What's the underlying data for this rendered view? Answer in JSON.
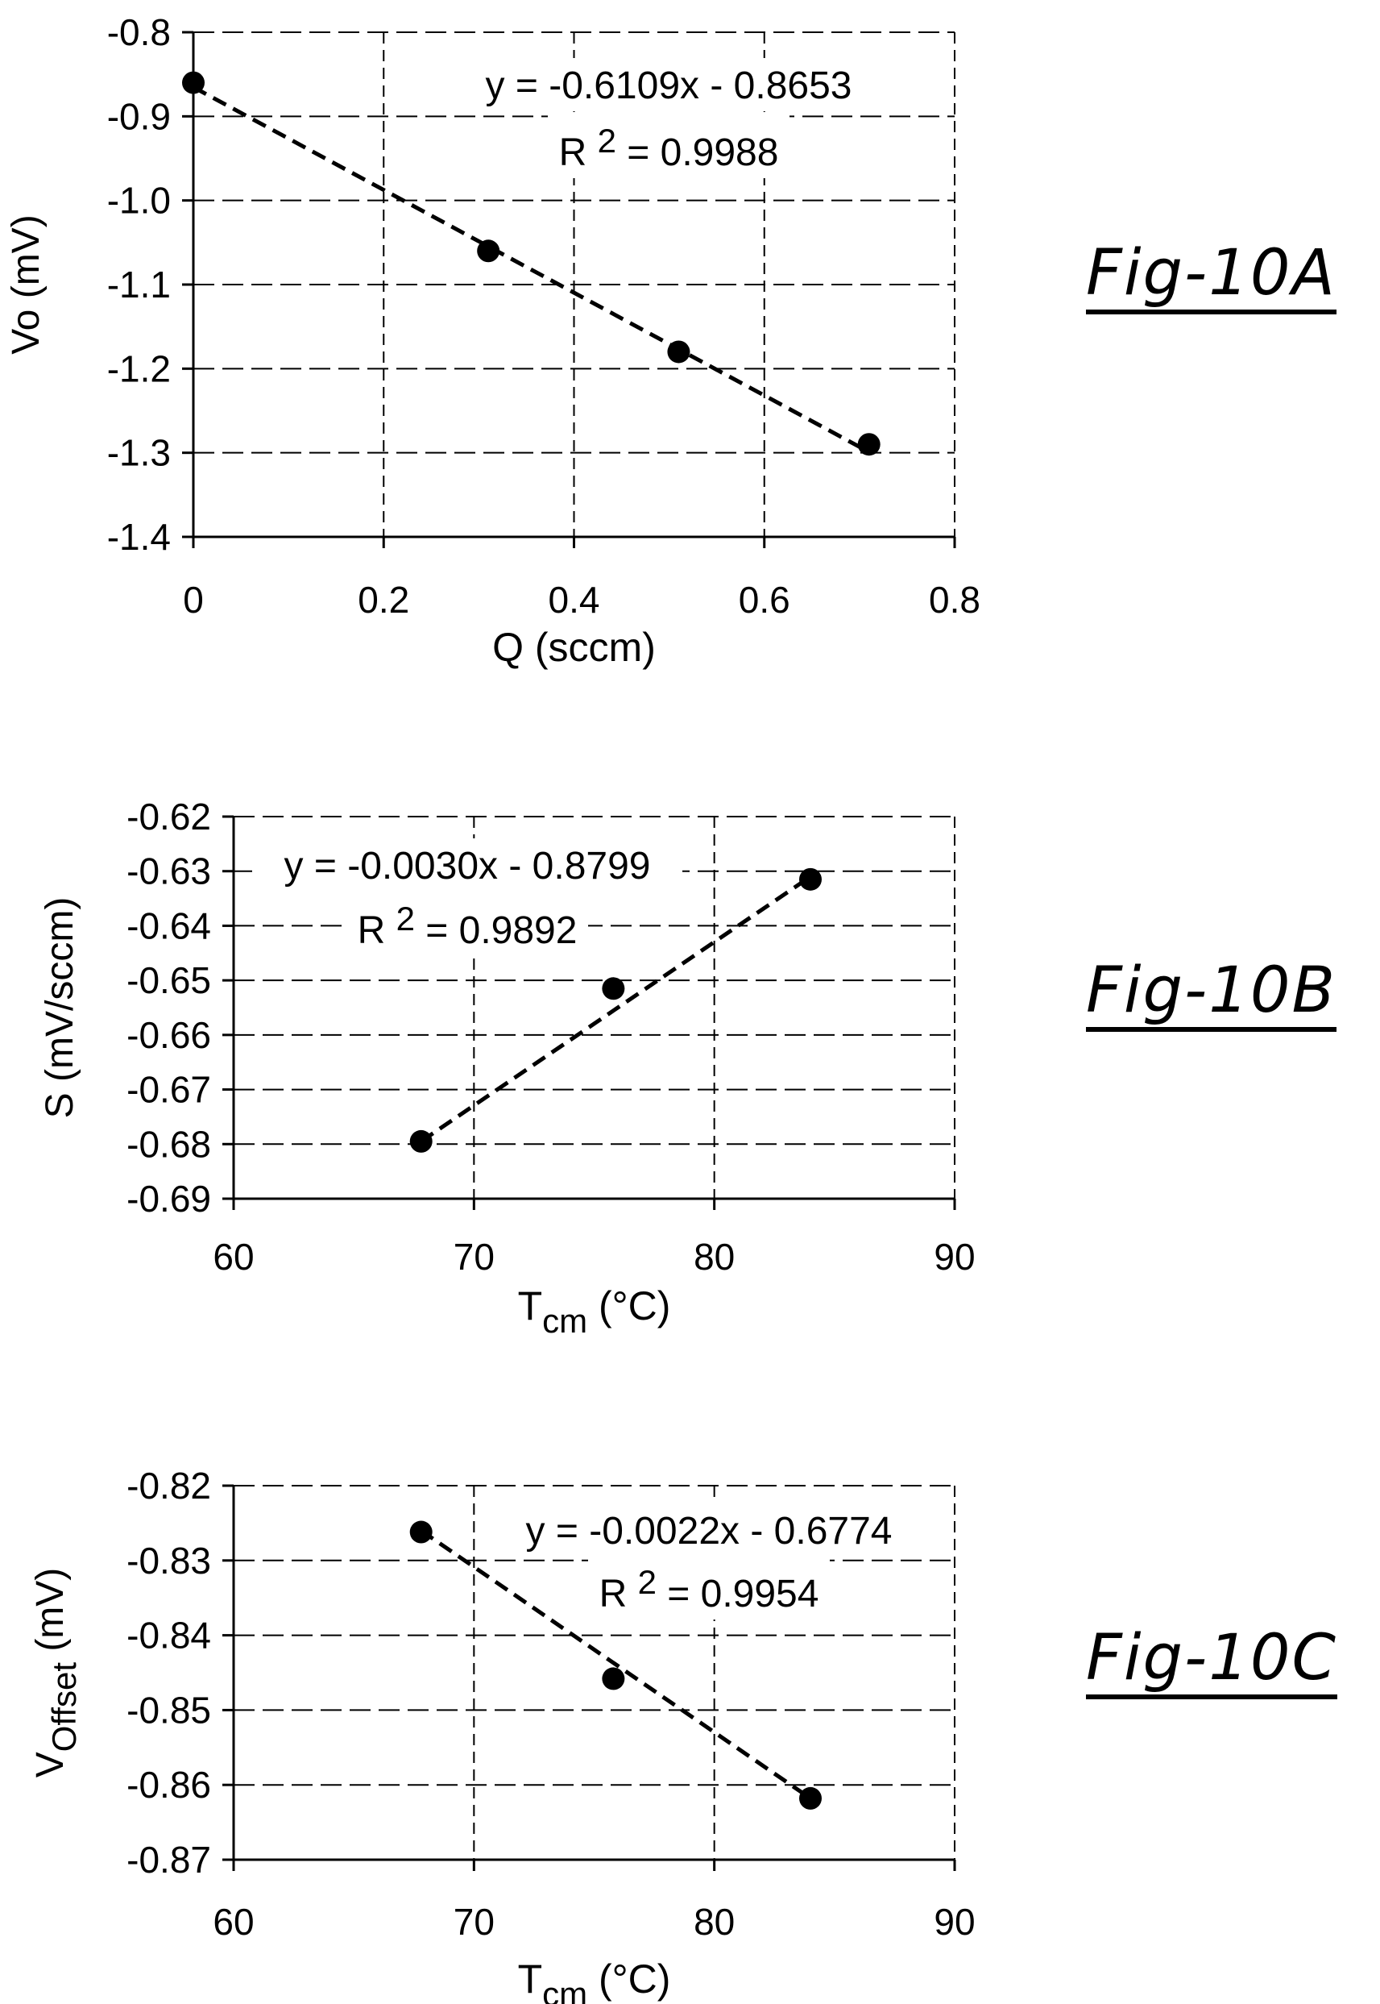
{
  "figures": [
    {
      "label": "Fig-10A"
    },
    {
      "label": "Fig-10B"
    },
    {
      "label": "Fig-10C"
    }
  ],
  "chart_data": [
    {
      "type": "scatter",
      "title": "",
      "xlabel": "Q (sccm)",
      "ylabel": "Vo (mV)",
      "xlim": [
        0,
        0.8
      ],
      "ylim": [
        -1.4,
        -0.8
      ],
      "xticks": [
        "0",
        "0.2",
        "0.4",
        "0.6",
        "0.8"
      ],
      "yticks": [
        "-0.8",
        "-0.9",
        "-1.0",
        "-1.1",
        "-1.2",
        "-1.3",
        "-1.4"
      ],
      "grid": true,
      "points": {
        "x": [
          0,
          0.31,
          0.51,
          0.71
        ],
        "y": [
          -0.86,
          -1.06,
          -1.18,
          -1.29
        ]
      },
      "trendline": {
        "style": "dashed",
        "slope": -0.6109,
        "intercept": -0.8653
      },
      "annotation": {
        "equation": "y = -0.6109x - 0.8653",
        "r2_prefix": "R",
        "r2_sup": "2",
        "r2_value": "= 0.9988"
      }
    },
    {
      "type": "scatter",
      "title": "",
      "xlabel": "T",
      "xlabel_sub": "cm",
      "xlabel_suffix": "(°C)",
      "ylabel": "S (mV/sccm)",
      "xlim": [
        60,
        90
      ],
      "ylim": [
        -0.69,
        -0.62
      ],
      "xticks": [
        "60",
        "70",
        "80",
        "90"
      ],
      "yticks": [
        "-0.62",
        "-0.63",
        "-0.64",
        "-0.65",
        "-0.66",
        "-0.67",
        "-0.68",
        "-0.69"
      ],
      "grid": true,
      "points": {
        "x": [
          67.8,
          75.8,
          84.0
        ],
        "y": [
          -0.6795,
          -0.6515,
          -0.6315
        ]
      },
      "trendline": {
        "style": "dashed",
        "x_range": [
          67.8,
          84.0
        ],
        "y_range": [
          -0.6795,
          -0.631
        ]
      },
      "annotation": {
        "equation": "y = -0.0030x - 0.8799",
        "r2_prefix": "R",
        "r2_sup": "2",
        "r2_value": "= 0.9892"
      }
    },
    {
      "type": "scatter",
      "title": "",
      "xlabel": "T",
      "xlabel_sub": "cm",
      "xlabel_suffix": "(°C)",
      "ylabel": "V",
      "ylabel_sub": "Offset",
      "ylabel_suffix": "(mV)",
      "xlim": [
        60,
        90
      ],
      "ylim": [
        -0.87,
        -0.82
      ],
      "xticks": [
        "60",
        "70",
        "80",
        "90"
      ],
      "yticks": [
        "-0.82",
        "-0.83",
        "-0.84",
        "-0.85",
        "-0.86",
        "-0.87"
      ],
      "grid": true,
      "points": {
        "x": [
          67.8,
          75.8,
          84.0
        ],
        "y": [
          -0.8262,
          -0.8458,
          -0.8618
        ]
      },
      "trendline": {
        "style": "dashed",
        "x_range": [
          67.8,
          84.0
        ],
        "y_range": [
          -0.826,
          -0.8618
        ]
      },
      "annotation": {
        "equation": "y = -0.0022x - 0.6774",
        "r2_prefix": "R",
        "r2_sup": "2",
        "r2_value": "= 0.9954"
      }
    }
  ]
}
